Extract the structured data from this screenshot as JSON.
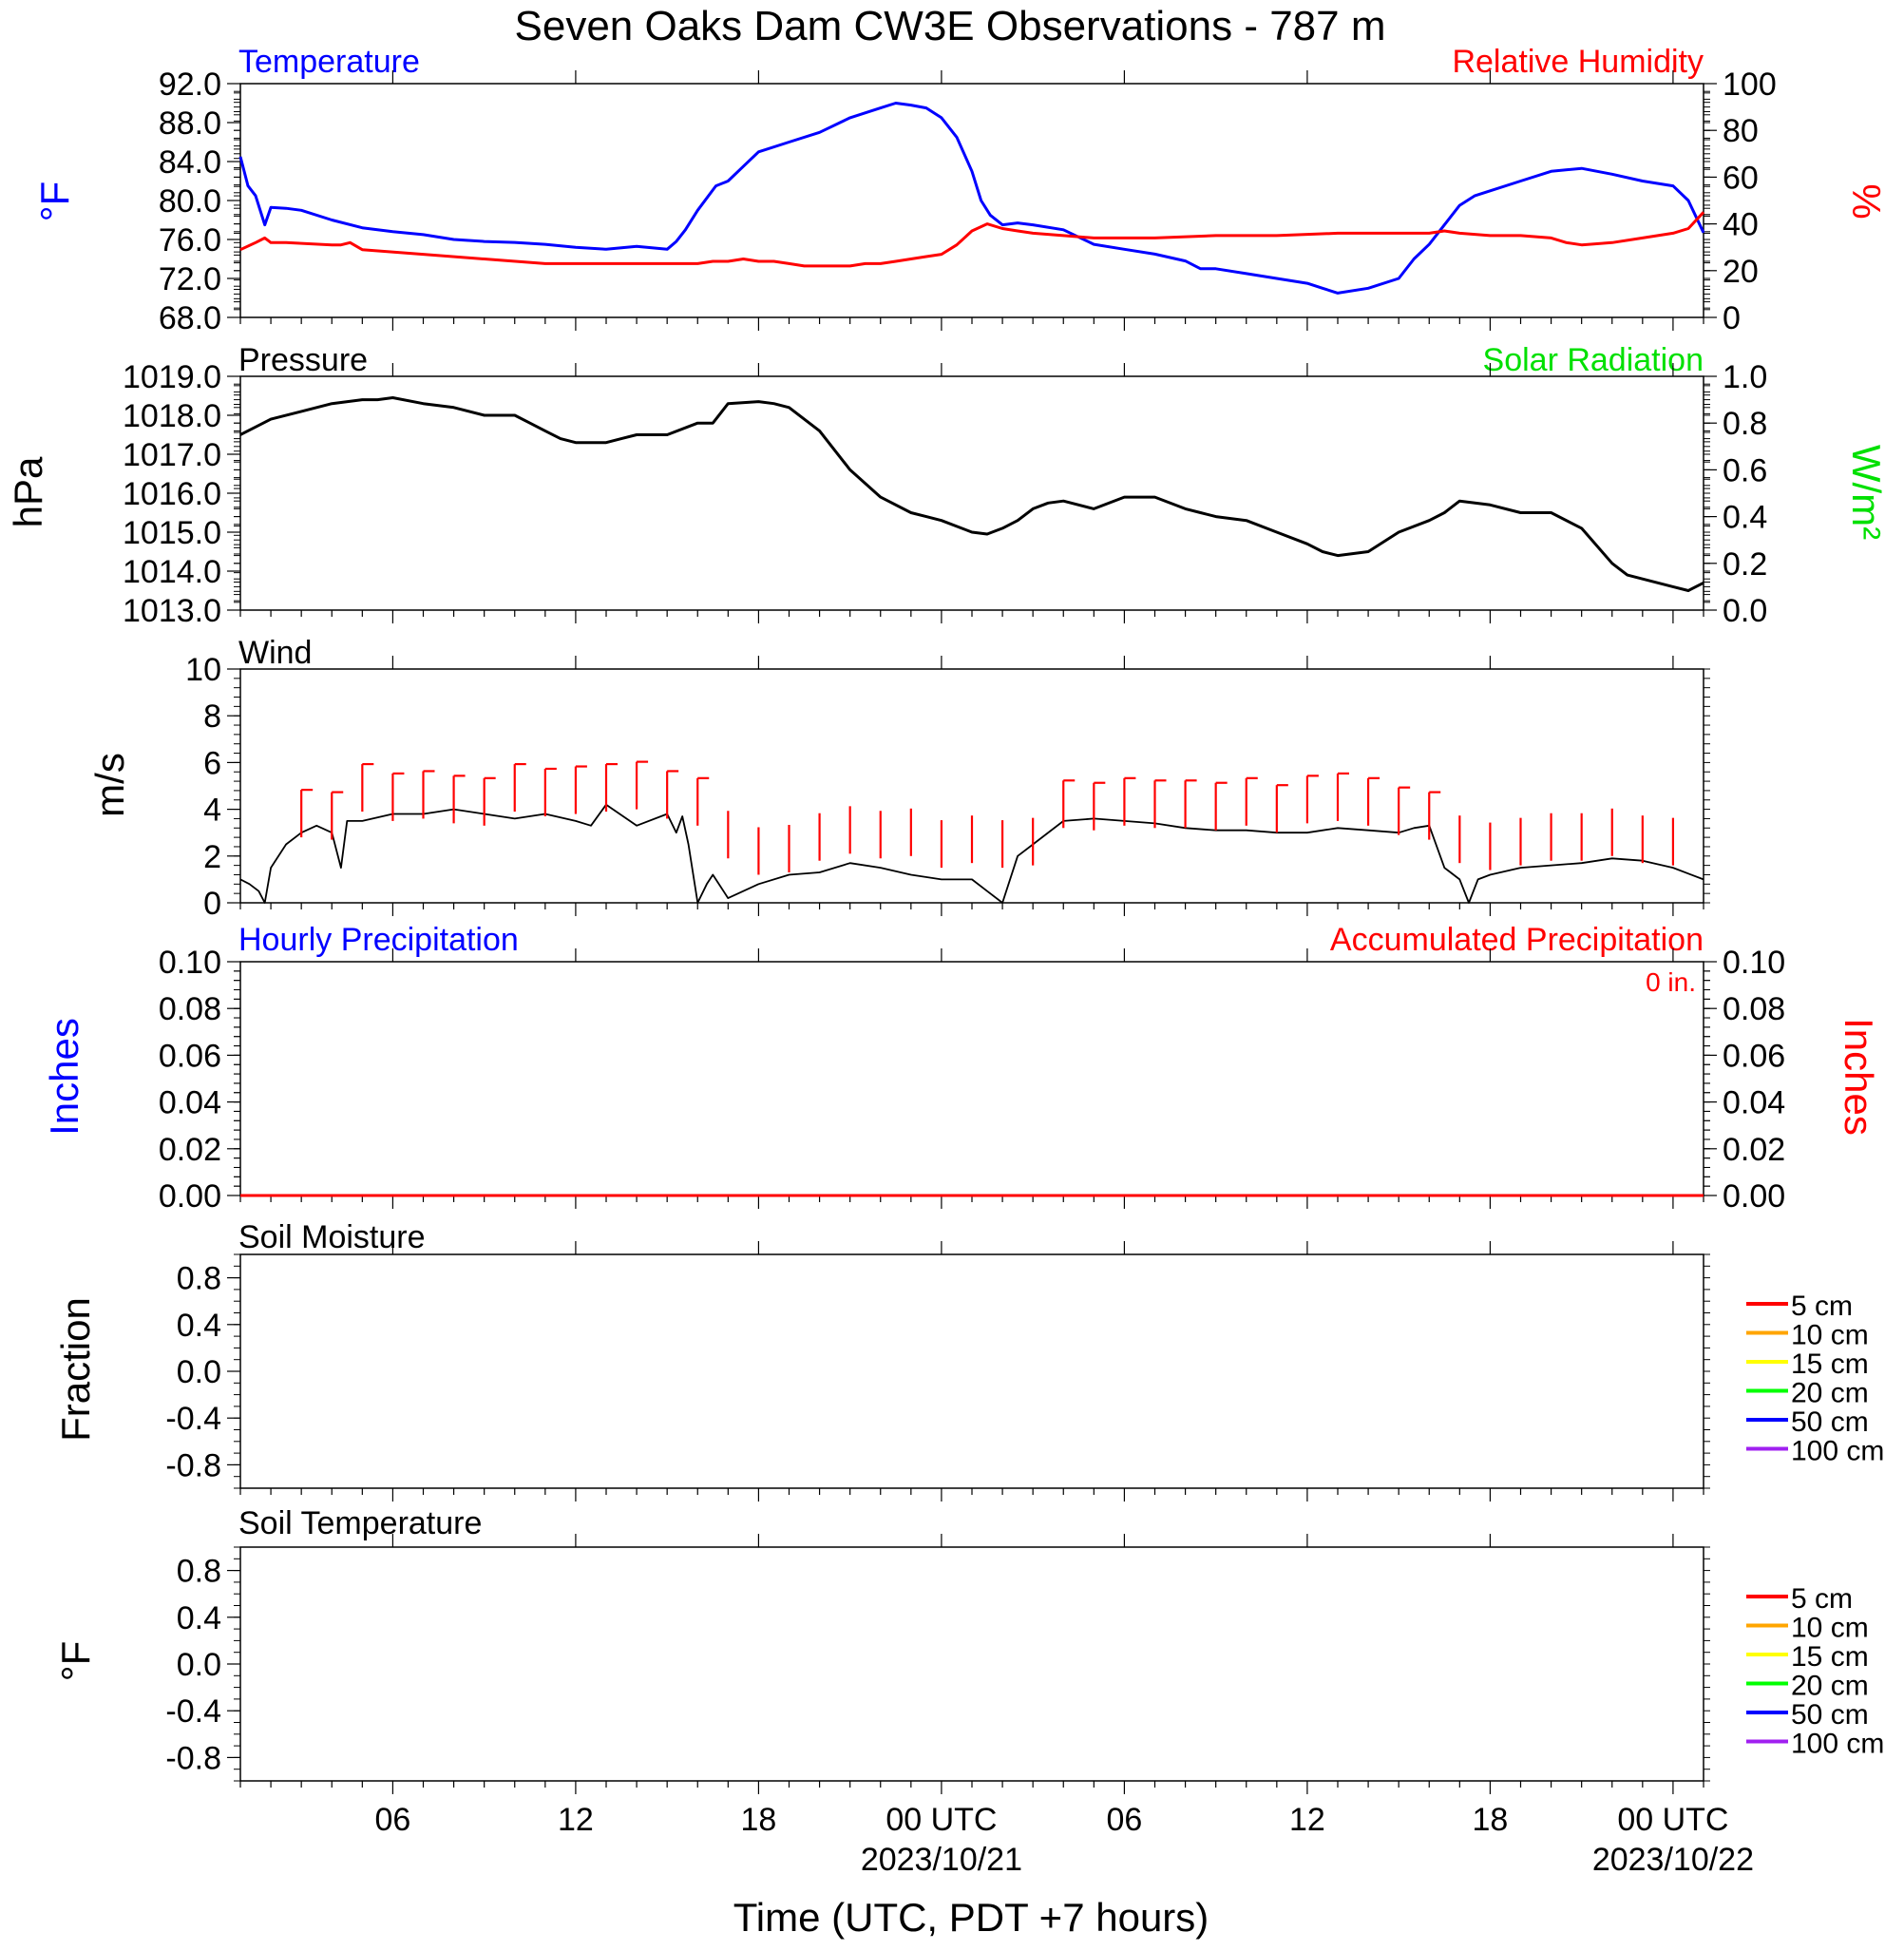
{
  "title": "Seven Oaks Dam CW3E Observations - 787 m",
  "time_axis": {
    "xlabel": "Time (UTC, PDT +7 hours)",
    "tick_labels": [
      "06",
      "12",
      "18",
      "00 UTC",
      "06",
      "12",
      "18",
      "00 UTC"
    ],
    "date_labels": [
      "2023/10/21",
      "2023/10/22"
    ]
  },
  "colors": {
    "blue": "#0000ff",
    "red": "#ff0000",
    "green": "#00e000",
    "black": "#000000"
  },
  "panels": {
    "temp_rh": {
      "left_title": "Temperature",
      "right_title": "Relative Humidity",
      "left_ylabel": "°F",
      "right_ylabel": "%",
      "left_ticks": [
        "92.0",
        "88.0",
        "84.0",
        "80.0",
        "76.0",
        "72.0",
        "68.0"
      ],
      "right_ticks": [
        "100",
        "80",
        "60",
        "40",
        "20",
        "0"
      ]
    },
    "pressure": {
      "left_title": "Pressure",
      "right_title": "Solar Radiation",
      "left_ylabel": "hPa",
      "right_ylabel": "W/m²",
      "left_ticks": [
        "1019.0",
        "1018.0",
        "1017.0",
        "1016.0",
        "1015.0",
        "1014.0",
        "1013.0"
      ],
      "right_ticks": [
        "1.0",
        "0.8",
        "0.6",
        "0.4",
        "0.2",
        "0.0"
      ]
    },
    "wind": {
      "left_title": "Wind",
      "left_ylabel": "m/s",
      "left_ticks": [
        "10",
        "8",
        "6",
        "4",
        "2",
        "0"
      ]
    },
    "precip": {
      "left_title": "Hourly Precipitation",
      "right_title": "Accumulated Precipitation",
      "annotation": "0 in.",
      "left_ylabel": "Inches",
      "right_ylabel": "Inches",
      "left_ticks": [
        "0.10",
        "0.08",
        "0.06",
        "0.04",
        "0.02",
        "0.00"
      ],
      "right_ticks": [
        "0.10",
        "0.08",
        "0.06",
        "0.04",
        "0.02",
        "0.00"
      ]
    },
    "soil_moisture": {
      "left_title": "Soil Moisture",
      "left_ylabel": "Fraction",
      "left_ticks": [
        "0.8",
        "0.4",
        "0.0",
        "-0.4",
        "-0.8"
      ],
      "legend": [
        "5 cm",
        "10 cm",
        "15 cm",
        "20 cm",
        "50 cm",
        "100 cm"
      ]
    },
    "soil_temp": {
      "left_title": "Soil Temperature",
      "left_ylabel": "°F",
      "left_ticks": [
        "0.8",
        "0.4",
        "0.0",
        "-0.4",
        "-0.8"
      ],
      "legend": [
        "5 cm",
        "10 cm",
        "15 cm",
        "20 cm",
        "50 cm",
        "100 cm"
      ]
    }
  },
  "legend_colors": [
    "#ff0000",
    "#ffa500",
    "#ffff00",
    "#00ff00",
    "#0000ff",
    "#a020f0"
  ],
  "chart_data": [
    {
      "type": "line",
      "panel": "temp_rh",
      "x_unit": "hours since 2023-10-20 01:00 UTC",
      "xlim": [
        0,
        48
      ],
      "series": [
        {
          "name": "Temperature",
          "axis": "left",
          "color": "#0000ff",
          "x": [
            0,
            0.25,
            0.5,
            0.8,
            1.0,
            1.5,
            2,
            3,
            4,
            5,
            6,
            7,
            8,
            9,
            10,
            11,
            12,
            13,
            14,
            14.3,
            14.6,
            15,
            15.6,
            16,
            16.5,
            17,
            18,
            19,
            20,
            21,
            21.5,
            22,
            22.5,
            23,
            23.5,
            24,
            24.3,
            24.6,
            25,
            25.5,
            26,
            27,
            28,
            29,
            30,
            31,
            31.5,
            32,
            33,
            34,
            35,
            35.5,
            36,
            37,
            38,
            38.5,
            39,
            39.5,
            40,
            40.5,
            41,
            42,
            43,
            44,
            45,
            46,
            47,
            47.5,
            48
          ],
          "y": [
            84.5,
            81.5,
            80.5,
            77.5,
            79.3,
            79.2,
            79.0,
            78.0,
            77.2,
            76.8,
            76.5,
            76.0,
            75.8,
            75.7,
            75.5,
            75.2,
            75.0,
            75.3,
            75.0,
            75.8,
            77.0,
            79.0,
            81.5,
            82.0,
            83.5,
            85.0,
            86.0,
            87.0,
            88.5,
            89.5,
            90.0,
            89.8,
            89.5,
            88.5,
            86.5,
            83.0,
            80.0,
            78.5,
            77.5,
            77.7,
            77.5,
            77.0,
            75.5,
            75.0,
            74.5,
            73.8,
            73.0,
            73.0,
            72.5,
            72.0,
            71.5,
            71.0,
            70.5,
            71.0,
            72.0,
            74.0,
            75.5,
            77.5,
            79.5,
            80.5,
            81.0,
            82.0,
            83.0,
            83.3,
            82.7,
            82.0,
            81.5,
            80.0,
            76.7
          ]
        },
        {
          "name": "Relative Humidity",
          "axis": "right",
          "color": "#ff0000",
          "x": [
            0,
            0.5,
            0.8,
            1.0,
            1.5,
            3,
            3.3,
            3.6,
            4,
            6,
            8,
            10,
            12,
            14,
            15,
            15.5,
            16,
            16.5,
            17,
            17.5,
            18,
            18.5,
            19,
            19.5,
            20,
            20.5,
            21,
            21.5,
            22,
            22.5,
            23,
            23.5,
            24,
            24.5,
            25,
            25.5,
            26,
            27,
            28,
            29,
            30,
            32,
            34,
            36,
            37,
            38,
            39,
            39.5,
            40,
            41,
            42,
            43,
            43.5,
            44,
            45,
            46,
            47,
            47.5,
            48
          ],
          "y": [
            29,
            32,
            34,
            32,
            32,
            31,
            31,
            32,
            29,
            27,
            25,
            23,
            23,
            23,
            23,
            24,
            24,
            25,
            24,
            24,
            23,
            22,
            22,
            22,
            22,
            23,
            23,
            24,
            25,
            26,
            27,
            31,
            37,
            40,
            38,
            37,
            36,
            35,
            34,
            34,
            34,
            35,
            35,
            36,
            36,
            36,
            36,
            37,
            36,
            35,
            35,
            34,
            32,
            31,
            32,
            34,
            36,
            38,
            45
          ]
        }
      ],
      "left_ylim": [
        68,
        92
      ],
      "right_ylim": [
        0,
        100
      ]
    },
    {
      "type": "line",
      "panel": "pressure",
      "x_unit": "hours since 2023-10-20 01:00 UTC",
      "xlim": [
        0,
        48
      ],
      "series": [
        {
          "name": "Pressure",
          "axis": "left",
          "color": "#000000",
          "x": [
            0,
            0.5,
            1,
            2,
            3,
            4,
            4.5,
            5,
            6,
            7,
            8,
            9,
            9.5,
            10,
            10.5,
            11,
            11.5,
            12,
            12.5,
            13,
            14,
            15,
            15.5,
            16,
            17,
            17.5,
            18,
            19,
            20,
            21,
            22,
            22.5,
            23,
            24,
            24.5,
            25,
            25.5,
            26,
            26.5,
            27,
            28,
            29,
            30,
            31,
            31.5,
            32,
            33,
            34,
            35,
            35.5,
            36,
            37,
            38,
            39,
            39.5,
            40,
            41,
            42,
            43,
            44,
            45,
            45.5,
            46,
            47,
            47.5,
            48
          ],
          "y": [
            1017.5,
            1017.7,
            1017.9,
            1018.1,
            1018.3,
            1018.4,
            1018.4,
            1018.45,
            1018.3,
            1018.2,
            1018.0,
            1018.0,
            1017.8,
            1017.6,
            1017.4,
            1017.3,
            1017.3,
            1017.3,
            1017.4,
            1017.5,
            1017.5,
            1017.8,
            1017.8,
            1018.3,
            1018.35,
            1018.3,
            1018.2,
            1017.6,
            1016.6,
            1015.9,
            1015.5,
            1015.4,
            1015.3,
            1015.0,
            1014.95,
            1015.1,
            1015.3,
            1015.6,
            1015.75,
            1015.8,
            1015.6,
            1015.9,
            1015.9,
            1015.6,
            1015.5,
            1015.4,
            1015.3,
            1015.0,
            1014.7,
            1014.5,
            1014.4,
            1014.5,
            1015.0,
            1015.3,
            1015.5,
            1015.8,
            1015.7,
            1015.5,
            1015.5,
            1015.1,
            1014.2,
            1013.9,
            1013.8,
            1013.6,
            1013.5,
            1013.7
          ]
        }
      ],
      "left_ylim": [
        1013,
        1019
      ],
      "right_ylim": [
        0,
        1
      ]
    },
    {
      "type": "line",
      "panel": "wind",
      "x_unit": "hours since 2023-10-20 01:00 UTC",
      "xlim": [
        0,
        48
      ],
      "series": [
        {
          "name": "Wind speed",
          "axis": "left",
          "color": "#000000",
          "x": [
            0,
            0.3,
            0.6,
            0.8,
            1,
            1.5,
            2,
            2.5,
            3,
            3.3,
            3.5,
            4,
            5,
            6,
            7,
            8,
            9,
            10,
            11,
            11.5,
            12,
            13,
            14,
            14.3,
            14.5,
            14.7,
            15,
            15.3,
            15.5,
            16,
            17,
            18,
            19,
            20,
            21,
            22,
            23,
            24,
            24.5,
            25,
            25.5,
            26,
            27,
            28,
            29,
            30,
            31,
            32,
            33,
            34,
            35,
            36,
            37,
            38,
            38.5,
            39,
            39.5,
            40,
            40.3,
            40.6,
            41,
            42,
            43,
            44,
            45,
            46,
            47,
            48
          ],
          "y": [
            1.0,
            0.8,
            0.5,
            0.0,
            1.5,
            2.5,
            3.0,
            3.3,
            3.0,
            1.5,
            3.5,
            3.5,
            3.8,
            3.8,
            4.0,
            3.8,
            3.6,
            3.8,
            3.5,
            3.3,
            4.2,
            3.3,
            3.8,
            3.0,
            3.7,
            2.5,
            0.0,
            0.8,
            1.2,
            0.2,
            0.8,
            1.2,
            1.3,
            1.7,
            1.5,
            1.2,
            1.0,
            1.0,
            0.5,
            0.0,
            2.0,
            2.5,
            3.5,
            3.6,
            3.5,
            3.4,
            3.2,
            3.1,
            3.1,
            3.0,
            3.0,
            3.2,
            3.1,
            3.0,
            3.2,
            3.3,
            1.5,
            1.0,
            0.0,
            1.0,
            1.2,
            1.5,
            1.6,
            1.7,
            1.9,
            1.8,
            1.5,
            1.0
          ]
        }
      ],
      "barb_x": [
        2,
        3,
        4,
        5,
        6,
        7,
        8,
        9,
        10,
        11,
        12,
        13,
        14,
        15,
        16,
        17,
        18,
        19,
        20,
        21,
        22,
        23,
        24,
        25,
        26,
        27,
        28,
        29,
        30,
        31,
        32,
        33,
        34,
        35,
        36,
        37,
        38,
        39,
        40,
        41,
        42,
        43,
        44,
        45,
        46,
        47
      ],
      "barb_speed": [
        3.4,
        3.3,
        4.5,
        4.1,
        4.2,
        4.0,
        3.9,
        4.5,
        4.3,
        4.4,
        4.5,
        4.6,
        4.2,
        3.9,
        2.5,
        1.8,
        1.9,
        2.4,
        2.7,
        2.5,
        2.6,
        2.1,
        2.3,
        2.1,
        2.2,
        3.8,
        3.7,
        3.9,
        3.8,
        3.8,
        3.7,
        3.9,
        3.6,
        4.0,
        4.1,
        3.9,
        3.5,
        3.3,
        2.3,
        2.0,
        2.2,
        2.4,
        2.4,
        2.6,
        2.3,
        2.2
      ],
      "left_ylim": [
        0,
        10
      ]
    },
    {
      "type": "line",
      "panel": "precip",
      "x_unit": "hours since 2023-10-20 01:00 UTC",
      "xlim": [
        0,
        48
      ],
      "series": [
        {
          "name": "Hourly Precipitation",
          "axis": "left",
          "color": "#0000ff",
          "x": [
            0,
            48
          ],
          "y": [
            0,
            0
          ]
        },
        {
          "name": "Accumulated Precipitation",
          "axis": "right",
          "color": "#ff0000",
          "x": [
            0,
            48
          ],
          "y": [
            0,
            0
          ]
        }
      ],
      "left_ylim": [
        0,
        0.1
      ],
      "right_ylim": [
        0,
        0.1
      ]
    },
    {
      "type": "line",
      "panel": "soil_moisture",
      "series": [],
      "left_ylim": [
        -1,
        1
      ]
    },
    {
      "type": "line",
      "panel": "soil_temp",
      "series": [],
      "left_ylim": [
        -1,
        1
      ]
    }
  ]
}
